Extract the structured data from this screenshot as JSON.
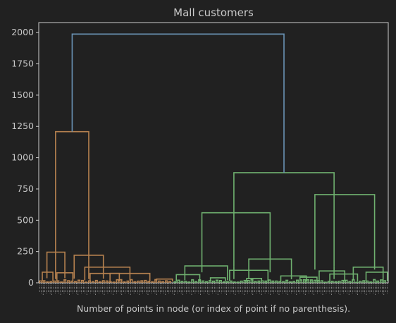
{
  "chart_data": {
    "type": "dendrogram",
    "title": "Mall customers",
    "xlabel": "Number of points in node (or index of point if no parenthesis).",
    "ylabel": "",
    "ylim": [
      0,
      2080
    ],
    "yticks": [
      0,
      250,
      500,
      750,
      1000,
      1250,
      1500,
      1750,
      2000
    ],
    "grid": false,
    "leaf_count": 200,
    "colors": {
      "background": "#212121",
      "axes": "#cccccc",
      "text": "#c8c8c8",
      "root_link": "#6a93b5",
      "cluster_1": "#b5814f",
      "cluster_2": "#6fb06f"
    },
    "clusters": [
      {
        "color_key": "cluster_1",
        "leaf_range": [
          0,
          77
        ],
        "links": [
          {
            "left_x": 0.12,
            "right_x": 0.37,
            "height": 1208
          },
          {
            "left_x": 0.055,
            "right_x": 0.19,
            "height": 245
          },
          {
            "left_x": 0.26,
            "right_x": 0.48,
            "height": 220
          },
          {
            "left_x": 0.34,
            "right_x": 0.68,
            "height": 125
          },
          {
            "left_x": 0.02,
            "right_x": 0.1,
            "height": 85
          },
          {
            "left_x": 0.13,
            "right_x": 0.25,
            "height": 80
          },
          {
            "left_x": 0.53,
            "right_x": 0.83,
            "height": 75
          },
          {
            "left_x": 0.38,
            "right_x": 0.6,
            "height": 75
          },
          {
            "left_x": 0.88,
            "right_x": 1.0,
            "height": 30
          }
        ]
      },
      {
        "color_key": "cluster_2",
        "leaf_range": [
          77,
          200
        ],
        "links": [
          {
            "left_x": 0.28,
            "right_x": 0.75,
            "height": 880
          },
          {
            "left_x": 0.13,
            "right_x": 0.45,
            "height": 560
          },
          {
            "left_x": 0.66,
            "right_x": 0.94,
            "height": 705
          },
          {
            "left_x": 0.05,
            "right_x": 0.25,
            "height": 135
          },
          {
            "left_x": 0.35,
            "right_x": 0.55,
            "height": 190
          },
          {
            "left_x": 0.26,
            "right_x": 0.44,
            "height": 100
          },
          {
            "left_x": 0.68,
            "right_x": 0.8,
            "height": 95
          },
          {
            "left_x": 0.84,
            "right_x": 0.98,
            "height": 125
          },
          {
            "left_x": 0.01,
            "right_x": 0.12,
            "height": 65
          },
          {
            "left_x": 0.5,
            "right_x": 0.62,
            "height": 55
          },
          {
            "left_x": 0.73,
            "right_x": 0.86,
            "height": 70
          },
          {
            "left_x": 0.9,
            "right_x": 1.0,
            "height": 85
          },
          {
            "left_x": 0.17,
            "right_x": 0.24,
            "height": 40
          },
          {
            "left_x": 0.34,
            "right_x": 0.41,
            "height": 35
          },
          {
            "left_x": 0.59,
            "right_x": 0.67,
            "height": 45
          }
        ]
      }
    ],
    "root": {
      "left_node": {
        "x": 0.24,
        "height": 1208
      },
      "right_node": {
        "x": 0.6,
        "height": 880
      },
      "height": 1988
    }
  }
}
